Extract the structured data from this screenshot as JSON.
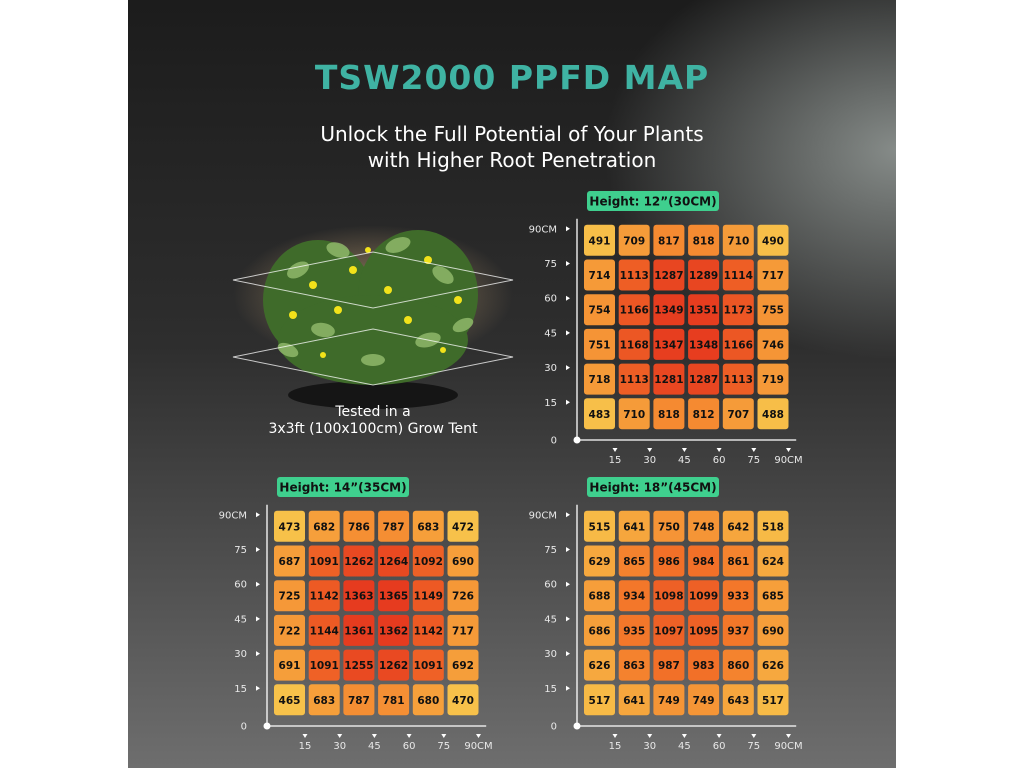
{
  "title": "TSW2000 PPFD MAP",
  "subtitle_line1": "Unlock the Full Potential of Your Plants",
  "subtitle_line2": "with Higher Root Penetration",
  "plant_caption_line1": "Tested in a",
  "plant_caption_line2": "3x3ft (100x100cm) Grow Tent",
  "colors": {
    "title": "#3fb3a3",
    "badge": "#3fcf8e",
    "cell_low": "#f7c24a",
    "cell_mid": "#f47a2a",
    "cell_high": "#e63b1f"
  },
  "chart_data": [
    {
      "type": "heatmap",
      "title": "Height: 12”(30CM)",
      "x_ticks": [
        "15",
        "30",
        "45",
        "60",
        "75",
        "90CM"
      ],
      "y_ticks": [
        "90CM",
        "75",
        "60",
        "45",
        "30",
        "15",
        "0"
      ],
      "rows": [
        [
          491,
          709,
          817,
          818,
          710,
          490
        ],
        [
          714,
          1113,
          1287,
          1289,
          1114,
          717
        ],
        [
          754,
          1166,
          1349,
          1351,
          1173,
          755
        ],
        [
          751,
          1168,
          1347,
          1348,
          1166,
          746
        ],
        [
          718,
          1113,
          1281,
          1287,
          1113,
          719
        ],
        [
          483,
          710,
          818,
          812,
          707,
          488
        ]
      ]
    },
    {
      "type": "heatmap",
      "title": "Height: 14”(35CM)",
      "x_ticks": [
        "15",
        "30",
        "45",
        "60",
        "75",
        "90CM"
      ],
      "y_ticks": [
        "90CM",
        "75",
        "60",
        "45",
        "30",
        "15",
        "0"
      ],
      "rows": [
        [
          473,
          682,
          786,
          787,
          683,
          472
        ],
        [
          687,
          1091,
          1262,
          1264,
          1092,
          690
        ],
        [
          725,
          1142,
          1363,
          1365,
          1149,
          726
        ],
        [
          722,
          1144,
          1361,
          1362,
          1142,
          717
        ],
        [
          691,
          1091,
          1255,
          1262,
          1091,
          692
        ],
        [
          465,
          683,
          787,
          781,
          680,
          470
        ]
      ]
    },
    {
      "type": "heatmap",
      "title": "Height: 18”(45CM)",
      "x_ticks": [
        "15",
        "30",
        "45",
        "60",
        "75",
        "90CM"
      ],
      "y_ticks": [
        "90CM",
        "75",
        "60",
        "45",
        "30",
        "15",
        "0"
      ],
      "rows": [
        [
          515,
          641,
          750,
          748,
          642,
          518
        ],
        [
          629,
          865,
          986,
          984,
          861,
          624
        ],
        [
          688,
          934,
          1098,
          1099,
          933,
          685
        ],
        [
          686,
          935,
          1097,
          1095,
          937,
          690
        ],
        [
          626,
          863,
          987,
          983,
          860,
          626
        ],
        [
          517,
          641,
          749,
          749,
          643,
          517
        ]
      ]
    }
  ]
}
